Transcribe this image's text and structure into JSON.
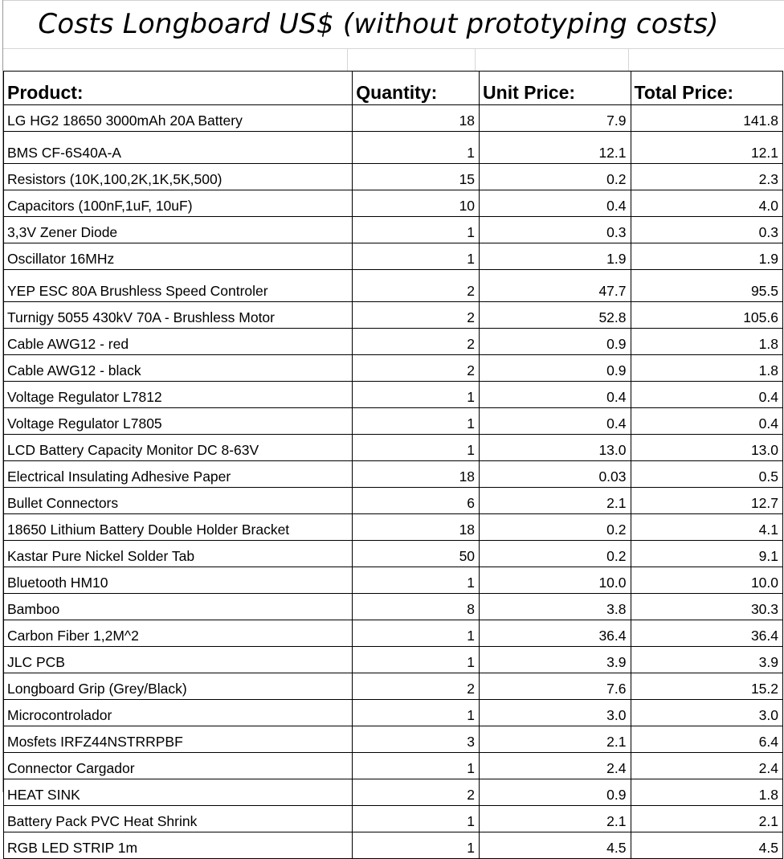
{
  "title": "Costs Longboard US$ (without prototyping costs)",
  "headers": {
    "product": "Product:",
    "quantity": "Quantity:",
    "unit_price": "Unit Price:",
    "total_price": "Total Price:"
  },
  "rows": [
    {
      "product": "LG HG2 18650 3000mAh 20A Battery",
      "quantity": "18",
      "unit_price": "7.9",
      "total_price": "141.8"
    },
    {
      "product": "BMS CF-6S40A-A",
      "quantity": "1",
      "unit_price": "12.1",
      "total_price": "12.1"
    },
    {
      "product": "Resistors (10K,100,2K,1K,5K,500)",
      "quantity": "15",
      "unit_price": "0.2",
      "total_price": "2.3"
    },
    {
      "product": "Capacitors (100nF,1uF, 10uF)",
      "quantity": "10",
      "unit_price": "0.4",
      "total_price": "4.0"
    },
    {
      "product": "3,3V Zener Diode",
      "quantity": "1",
      "unit_price": "0.3",
      "total_price": "0.3"
    },
    {
      "product": "Oscillator 16MHz",
      "quantity": "1",
      "unit_price": "1.9",
      "total_price": "1.9"
    },
    {
      "product": "YEP ESC 80A Brushless Speed Controler",
      "quantity": "2",
      "unit_price": "47.7",
      "total_price": "95.5"
    },
    {
      "product": "Turnigy 5055 430kV 70A - Brushless Motor",
      "quantity": "2",
      "unit_price": "52.8",
      "total_price": "105.6"
    },
    {
      "product": "Cable AWG12 - red",
      "quantity": "2",
      "unit_price": "0.9",
      "total_price": "1.8"
    },
    {
      "product": "Cable AWG12 - black",
      "quantity": "2",
      "unit_price": "0.9",
      "total_price": "1.8"
    },
    {
      "product": "Voltage Regulator L7812",
      "quantity": "1",
      "unit_price": "0.4",
      "total_price": "0.4"
    },
    {
      "product": "Voltage Regulator L7805",
      "quantity": "1",
      "unit_price": "0.4",
      "total_price": "0.4"
    },
    {
      "product": "LCD Battery Capacity Monitor DC 8-63V",
      "quantity": "1",
      "unit_price": "13.0",
      "total_price": "13.0"
    },
    {
      "product": "Electrical Insulating Adhesive Paper",
      "quantity": "18",
      "unit_price": "0.03",
      "total_price": "0.5"
    },
    {
      "product": "Bullet Connectors",
      "quantity": "6",
      "unit_price": "2.1",
      "total_price": "12.7"
    },
    {
      "product": "18650 Lithium Battery Double Holder Bracket",
      "quantity": "18",
      "unit_price": "0.2",
      "total_price": "4.1"
    },
    {
      "product": "Kastar Pure Nickel Solder Tab",
      "quantity": "50",
      "unit_price": "0.2",
      "total_price": "9.1"
    },
    {
      "product": "Bluetooth HM10",
      "quantity": "1",
      "unit_price": "10.0",
      "total_price": "10.0"
    },
    {
      "product": "Bamboo",
      "quantity": "8",
      "unit_price": "3.8",
      "total_price": "30.3"
    },
    {
      "product": "Carbon Fiber 1,2M^2",
      "quantity": "1",
      "unit_price": "36.4",
      "total_price": "36.4"
    },
    {
      "product": "JLC PCB",
      "quantity": "1",
      "unit_price": "3.9",
      "total_price": "3.9"
    },
    {
      "product": "Longboard Grip (Grey/Black)",
      "quantity": "2",
      "unit_price": "7.6",
      "total_price": "15.2"
    },
    {
      "product": "Microcontrolador",
      "quantity": "1",
      "unit_price": "3.0",
      "total_price": "3.0"
    },
    {
      "product": "Mosfets IRFZ44NSTRRPBF",
      "quantity": "3",
      "unit_price": "2.1",
      "total_price": "6.4"
    },
    {
      "product": "Connector Cargador",
      "quantity": "1",
      "unit_price": "2.4",
      "total_price": "2.4"
    },
    {
      "product": "HEAT SINK",
      "quantity": "2",
      "unit_price": "0.9",
      "total_price": "1.8"
    },
    {
      "product": "Battery Pack PVC Heat Shrink",
      "quantity": "1",
      "unit_price": "2.1",
      "total_price": "2.1"
    },
    {
      "product": "RGB LED STRIP 1m",
      "quantity": "1",
      "unit_price": "4.5",
      "total_price": "4.5"
    }
  ]
}
